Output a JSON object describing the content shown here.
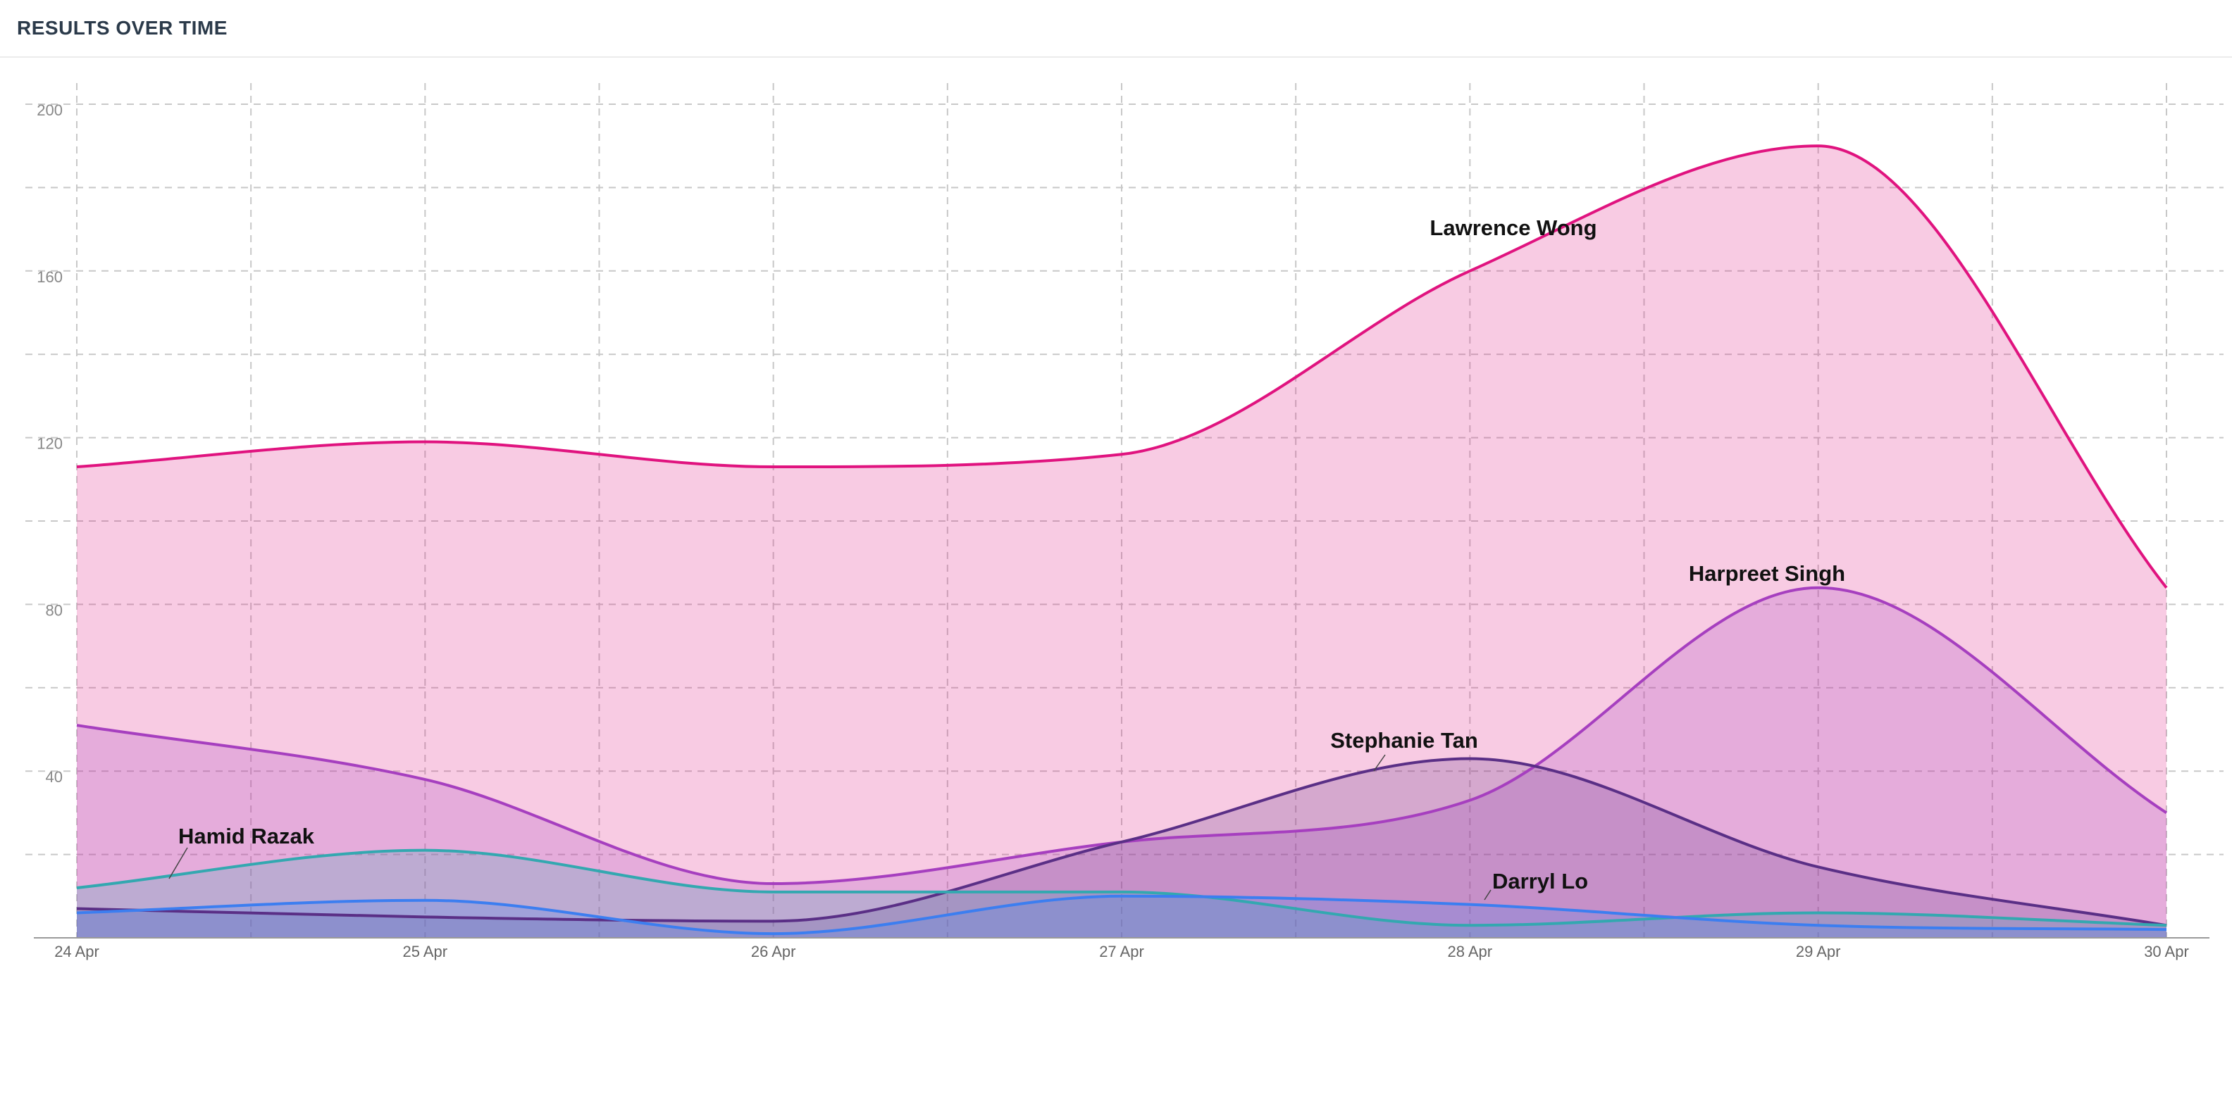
{
  "header": {
    "title": "RESULTS OVER TIME"
  },
  "chart_data": {
    "type": "area",
    "title": "RESULTS OVER TIME",
    "xlabel": "",
    "ylabel": "",
    "categories": [
      "24 Apr",
      "25 Apr",
      "26 Apr",
      "27 Apr",
      "28 Apr",
      "29 Apr",
      "30 Apr"
    ],
    "ylim": [
      0,
      200
    ],
    "yticks": [
      40,
      80,
      120,
      160,
      200
    ],
    "grid": true,
    "series": [
      {
        "name": "Lawrence Wong",
        "color": "#e0137f",
        "values": [
          113,
          119,
          113,
          116,
          160,
          190,
          84
        ]
      },
      {
        "name": "Harpreet Singh",
        "color": "#a63fbf",
        "values": [
          51,
          38,
          13,
          23,
          33,
          84,
          30
        ]
      },
      {
        "name": "Stephanie Tan",
        "color": "#5a2f86",
        "values": [
          7,
          5,
          4,
          23,
          43,
          17,
          3
        ]
      },
      {
        "name": "Hamid Razak",
        "color": "#33a8b0",
        "values": [
          12,
          21,
          11,
          11,
          3,
          6,
          3
        ]
      },
      {
        "name": "Darryl Lo",
        "color": "#3c7ef0",
        "values": [
          6,
          9,
          1,
          10,
          8,
          3,
          2
        ]
      }
    ]
  }
}
